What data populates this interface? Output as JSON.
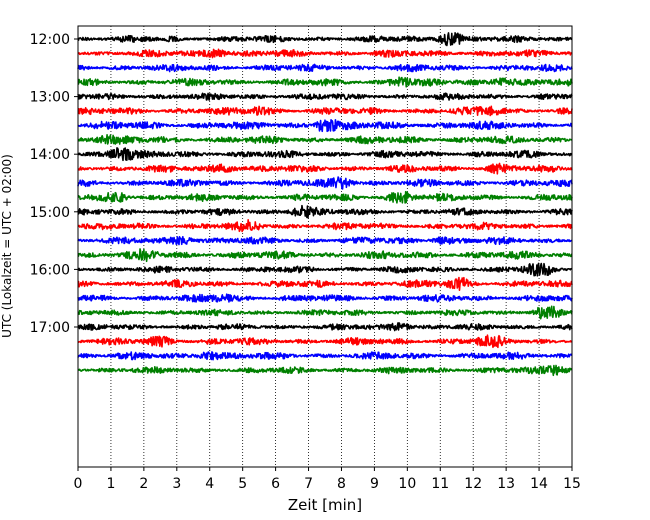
{
  "chart_data": {
    "type": "line",
    "title": "",
    "xlabel": "Zeit  [min]",
    "ylabel": "UTC (Lokalzeit = UTC + 02:00)",
    "xlim": [
      0,
      15
    ],
    "x_ticks": [
      "0",
      "1",
      "2",
      "3",
      "4",
      "5",
      "6",
      "7",
      "8",
      "9",
      "10",
      "11",
      "12",
      "13",
      "14",
      "15"
    ],
    "y_ticks": [
      "12:00",
      "13:00",
      "14:00",
      "15:00",
      "16:00",
      "17:00"
    ],
    "vertical_grid": "dotted",
    "trace_colors": [
      "#000000",
      "#ff0000",
      "#0000ff",
      "#008000"
    ],
    "traces": [
      {
        "start": "12:00",
        "amp": 0.55,
        "events": [
          {
            "t": 11.3,
            "a": 1.0
          }
        ]
      },
      {
        "start": "12:15",
        "amp": 0.6,
        "events": [
          {
            "t": 4.2,
            "a": 0.6
          }
        ]
      },
      {
        "start": "12:30",
        "amp": 0.6,
        "events": []
      },
      {
        "start": "12:45",
        "amp": 0.6,
        "events": [
          {
            "t": 9.8,
            "a": 0.7
          },
          {
            "t": 12.9,
            "a": 0.6
          }
        ]
      },
      {
        "start": "13:00",
        "amp": 0.55,
        "events": []
      },
      {
        "start": "13:15",
        "amp": 0.6,
        "events": [
          {
            "t": 5.5,
            "a": 0.5
          },
          {
            "t": 12.5,
            "a": 0.5
          }
        ]
      },
      {
        "start": "13:30",
        "amp": 0.7,
        "events": [
          {
            "t": 7.5,
            "a": 0.9
          }
        ]
      },
      {
        "start": "13:45",
        "amp": 0.65,
        "events": [
          {
            "t": 0.8,
            "a": 0.5
          }
        ]
      },
      {
        "start": "14:00",
        "amp": 0.6,
        "events": [
          {
            "t": 1.3,
            "a": 1.0
          }
        ]
      },
      {
        "start": "14:15",
        "amp": 0.6,
        "events": [
          {
            "t": 4.5,
            "a": 0.6
          },
          {
            "t": 12.8,
            "a": 0.5
          }
        ]
      },
      {
        "start": "14:30",
        "amp": 0.6,
        "events": [
          {
            "t": 8.0,
            "a": 0.7
          }
        ]
      },
      {
        "start": "14:45",
        "amp": 0.6,
        "events": [
          {
            "t": 9.8,
            "a": 0.8
          },
          {
            "t": 1.2,
            "a": 0.6
          }
        ]
      },
      {
        "start": "15:00",
        "amp": 0.55,
        "events": [
          {
            "t": 6.8,
            "a": 0.9
          }
        ]
      },
      {
        "start": "15:15",
        "amp": 0.6,
        "events": [
          {
            "t": 5.2,
            "a": 0.5
          }
        ]
      },
      {
        "start": "15:30",
        "amp": 0.6,
        "events": [
          {
            "t": 3.2,
            "a": 0.5
          },
          {
            "t": 11.0,
            "a": 0.4
          }
        ]
      },
      {
        "start": "15:45",
        "amp": 0.65,
        "events": [
          {
            "t": 2.0,
            "a": 0.5
          }
        ]
      },
      {
        "start": "16:00",
        "amp": 0.55,
        "events": [
          {
            "t": 14.0,
            "a": 0.9
          }
        ]
      },
      {
        "start": "16:15",
        "amp": 0.6,
        "events": [
          {
            "t": 11.6,
            "a": 0.7
          }
        ]
      },
      {
        "start": "16:30",
        "amp": 0.6,
        "events": [
          {
            "t": 4.5,
            "a": 0.5
          }
        ]
      },
      {
        "start": "16:45",
        "amp": 0.5,
        "events": [
          {
            "t": 14.2,
            "a": 1.0
          }
        ]
      },
      {
        "start": "17:00",
        "amp": 0.5,
        "events": [
          {
            "t": 9.8,
            "a": 0.6
          }
        ]
      },
      {
        "start": "17:15",
        "amp": 0.6,
        "events": [
          {
            "t": 2.5,
            "a": 0.5
          },
          {
            "t": 12.5,
            "a": 0.6
          }
        ]
      },
      {
        "start": "17:30",
        "amp": 0.6,
        "events": [
          {
            "t": 4.0,
            "a": 0.6
          }
        ]
      },
      {
        "start": "17:45",
        "amp": 0.55,
        "events": [
          {
            "t": 14.5,
            "a": 0.6
          }
        ]
      }
    ]
  }
}
